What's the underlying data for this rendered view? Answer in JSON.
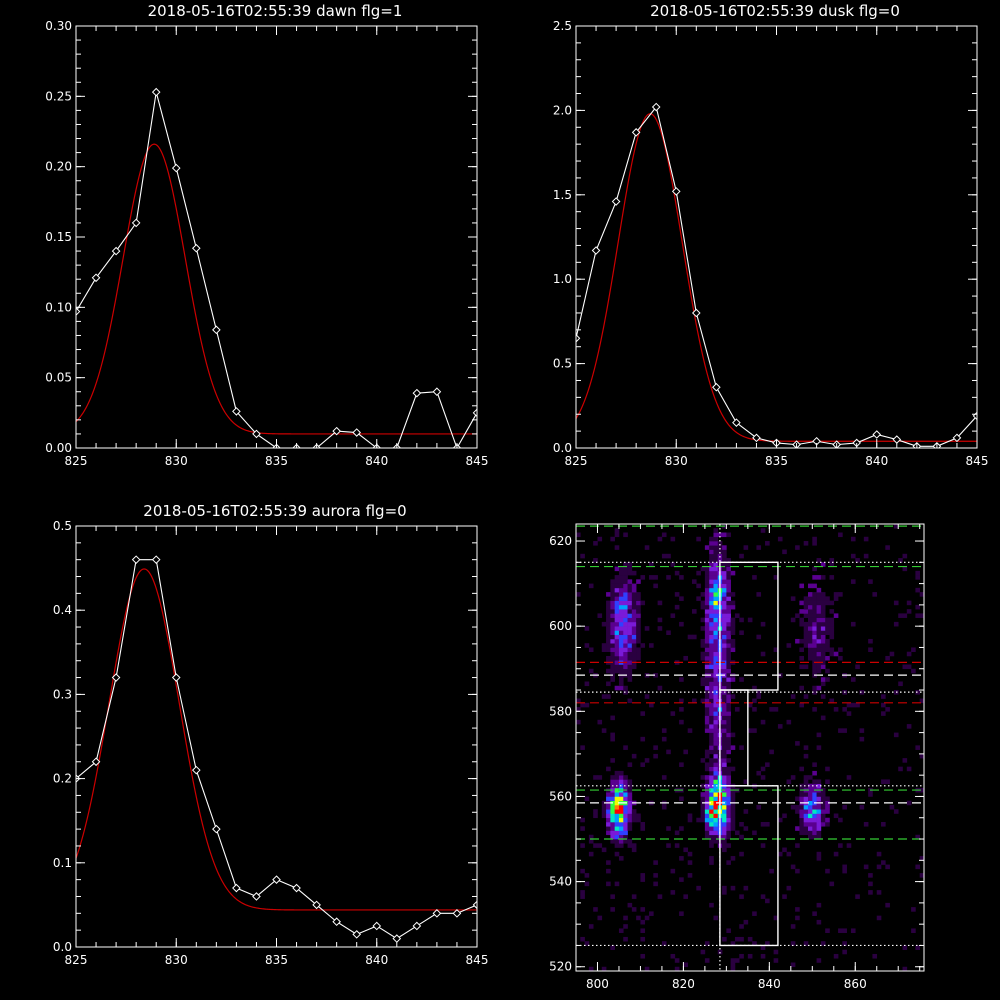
{
  "chart_data": [
    {
      "type": "line",
      "title": "2018-05-16T02:55:39 dawn flg=1",
      "xlim": [
        825,
        845
      ],
      "ylim": [
        0,
        0.3
      ],
      "xticks": [
        "825",
        "830",
        "835",
        "840",
        "845"
      ],
      "yticks": [
        "0.00",
        "0.05",
        "0.10",
        "0.15",
        "0.20",
        "0.25",
        "0.30"
      ],
      "series": [
        {
          "kind": "data-with-diamonds",
          "color": "#ffffff",
          "x": [
            825,
            826,
            827,
            828,
            829,
            830,
            831,
            832,
            833,
            834,
            835,
            836,
            837,
            838,
            839,
            840,
            841,
            842,
            843,
            844,
            845
          ],
          "y": [
            0.097,
            0.121,
            0.14,
            0.16,
            0.253,
            0.199,
            0.142,
            0.084,
            0.026,
            0.01,
            0.0,
            0.0,
            0.0,
            0.012,
            0.011,
            0.0,
            0.0,
            0.039,
            0.04,
            0.0,
            0.025
          ]
        },
        {
          "kind": "fit",
          "color": "#cc0000",
          "gaussian": {
            "amp": 0.206,
            "center": 828.9,
            "sigma": 1.55,
            "offset": 0.01
          }
        }
      ]
    },
    {
      "type": "line",
      "title": "2018-05-16T02:55:39 dusk flg=0",
      "xlim": [
        825,
        845
      ],
      "ylim": [
        0,
        2.5
      ],
      "xticks": [
        "825",
        "830",
        "835",
        "840",
        "845"
      ],
      "yticks": [
        "0.0",
        "0.5",
        "1.0",
        "1.5",
        "2.0",
        "2.5"
      ],
      "series": [
        {
          "kind": "data-with-diamonds",
          "color": "#ffffff",
          "x": [
            825,
            826,
            827,
            828,
            829,
            830,
            831,
            832,
            833,
            834,
            835,
            836,
            837,
            838,
            839,
            840,
            841,
            842,
            843,
            844,
            845
          ],
          "y": [
            0.65,
            1.17,
            1.46,
            1.87,
            2.02,
            1.52,
            0.8,
            0.36,
            0.15,
            0.06,
            0.03,
            0.02,
            0.04,
            0.02,
            0.03,
            0.08,
            0.05,
            0.01,
            0.01,
            0.06,
            0.19
          ]
        },
        {
          "kind": "fit",
          "color": "#cc0000",
          "gaussian": {
            "amp": 1.94,
            "center": 828.7,
            "sigma": 1.6,
            "offset": 0.04
          }
        }
      ]
    },
    {
      "type": "line",
      "title": "2018-05-16T02:55:39 aurora flg=0",
      "xlim": [
        825,
        845
      ],
      "ylim": [
        0,
        0.5
      ],
      "xticks": [
        "825",
        "830",
        "835",
        "840",
        "845"
      ],
      "yticks": [
        "0.0",
        "0.1",
        "0.2",
        "0.3",
        "0.4",
        "0.5"
      ],
      "series": [
        {
          "kind": "data-with-diamonds",
          "color": "#ffffff",
          "x": [
            825,
            826,
            827,
            828,
            829,
            830,
            831,
            832,
            833,
            834,
            835,
            836,
            837,
            838,
            839,
            840,
            841,
            842,
            843,
            844,
            845
          ],
          "y": [
            0.2,
            0.22,
            0.32,
            0.46,
            0.46,
            0.32,
            0.21,
            0.14,
            0.07,
            0.06,
            0.08,
            0.07,
            0.05,
            0.03,
            0.015,
            0.025,
            0.01,
            0.025,
            0.04,
            0.04,
            0.05
          ]
        },
        {
          "kind": "fit",
          "color": "#cc0000",
          "gaussian": {
            "amp": 0.405,
            "center": 828.4,
            "sigma": 1.75,
            "offset": 0.044
          }
        }
      ]
    },
    {
      "type": "heatmap",
      "title": "",
      "xlim": [
        795,
        876
      ],
      "ylim": [
        519,
        624
      ],
      "xticks": [
        "800",
        "820",
        "840",
        "860"
      ],
      "yticks": [
        "520",
        "540",
        "560",
        "580",
        "600",
        "620"
      ],
      "colormap": [
        "#000000",
        "#2a0040",
        "#5a0090",
        "#7a1ad8",
        "#3040ff",
        "#00a0ff",
        "#00e8c0",
        "#30ff40",
        "#f0ff00",
        "#ff8000",
        "#ff0000"
      ],
      "blobs": [
        {
          "x": 805,
          "y": 557,
          "sx": 1.6,
          "sy": 4.0,
          "amp": 0.85
        },
        {
          "x": 806,
          "y": 600,
          "sx": 2.2,
          "sy": 8.0,
          "amp": 0.35
        },
        {
          "x": 828,
          "y": 558,
          "sx": 1.7,
          "sy": 4.5,
          "amp": 1.0
        },
        {
          "x": 828,
          "y": 600,
          "sx": 2.0,
          "sy": 12.0,
          "amp": 0.35
        },
        {
          "x": 828,
          "y": 608,
          "sx": 1.2,
          "sy": 2.0,
          "amp": 0.35
        },
        {
          "x": 828,
          "y": 578,
          "sx": 2.0,
          "sy": 8.0,
          "amp": 0.18
        },
        {
          "x": 850,
          "y": 557,
          "sx": 2.0,
          "sy": 4.0,
          "amp": 0.4
        },
        {
          "x": 851,
          "y": 600,
          "sx": 3.0,
          "sy": 9.0,
          "amp": 0.15
        }
      ],
      "overlay_lines": [
        {
          "orient": "h",
          "at": 623.5,
          "color": "#33cc33",
          "style": "dash"
        },
        {
          "orient": "h",
          "at": 614,
          "color": "#33cc33",
          "style": "dash"
        },
        {
          "orient": "h",
          "at": 615,
          "color": "#ffffff",
          "style": "dot"
        },
        {
          "orient": "h",
          "at": 591.5,
          "color": "#cc0000",
          "style": "dash"
        },
        {
          "orient": "h",
          "at": 588.5,
          "color": "#ffffff",
          "style": "dash"
        },
        {
          "orient": "h",
          "at": 584.5,
          "color": "#ffffff",
          "style": "dot"
        },
        {
          "orient": "h",
          "at": 582,
          "color": "#cc0000",
          "style": "dash"
        },
        {
          "orient": "h",
          "at": 562.5,
          "color": "#ffffff",
          "style": "dot"
        },
        {
          "orient": "h",
          "at": 561.5,
          "color": "#33cc33",
          "style": "dash"
        },
        {
          "orient": "h",
          "at": 558.5,
          "color": "#ffffff",
          "style": "dash"
        },
        {
          "orient": "h",
          "at": 550,
          "color": "#33cc33",
          "style": "dash"
        },
        {
          "orient": "h",
          "at": 525,
          "color": "#ffffff",
          "style": "dot"
        },
        {
          "orient": "v",
          "at": 828.5,
          "color": "#ffffff",
          "style": "dot"
        }
      ],
      "boxes": [
        {
          "x1": 828.5,
          "x2": 842,
          "y1": 585,
          "y2": 615
        },
        {
          "x1": 828.5,
          "x2": 835,
          "y1": 562.5,
          "y2": 585
        },
        {
          "x1": 828.5,
          "x2": 842,
          "y1": 525,
          "y2": 562.5
        }
      ]
    }
  ]
}
